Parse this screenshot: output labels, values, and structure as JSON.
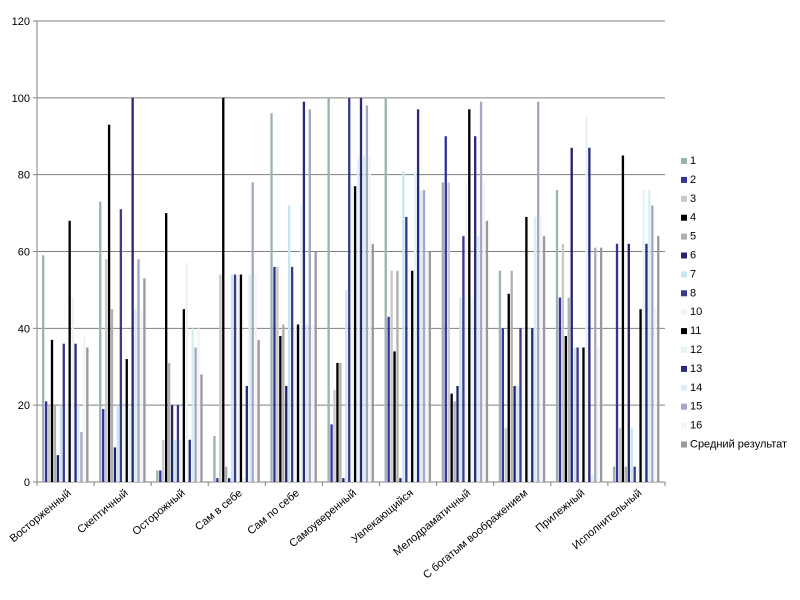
{
  "chart_data": {
    "type": "bar",
    "title": "",
    "xlabel": "",
    "ylabel": "",
    "ylim": [
      0,
      120
    ],
    "yticks": [
      0,
      20,
      40,
      60,
      80,
      100,
      120
    ],
    "grid": true,
    "legend_position": "right",
    "categories": [
      "Восторженный",
      "Скептичный",
      "Осторожный",
      "Сам в себе",
      "Сам по себе",
      "Самоуверенный",
      "Увлекающийся",
      "Мелодраматичный",
      "С богатым воображением",
      "Прилежный",
      "Исполнительный"
    ],
    "series": [
      {
        "name": "1",
        "color": "#9BB3B3",
        "values": [
          59,
          73,
          3,
          12,
          96,
          100,
          100,
          78,
          55,
          76,
          4
        ]
      },
      {
        "name": "2",
        "color": "#333399",
        "values": [
          21,
          19,
          3,
          1,
          56,
          15,
          43,
          90,
          40,
          48,
          62
        ]
      },
      {
        "name": "3",
        "color": "#C8C8C8",
        "values": [
          20,
          58,
          11,
          54,
          56,
          24,
          55,
          78,
          14,
          62,
          14
        ]
      },
      {
        "name": "4",
        "color": "#000000",
        "values": [
          37,
          93,
          70,
          100,
          38,
          31,
          34,
          23,
          49,
          38,
          85
        ]
      },
      {
        "name": "5",
        "color": "#B0B0B0",
        "values": [
          20,
          45,
          31,
          4,
          41,
          31,
          55,
          21,
          55,
          48,
          4
        ]
      },
      {
        "name": "6",
        "color": "#24246E",
        "values": [
          7,
          9,
          20,
          1,
          25,
          1,
          1,
          25,
          25,
          87,
          62
        ]
      },
      {
        "name": "7",
        "color": "#C8E6EE",
        "values": [
          20,
          20,
          11,
          54,
          72,
          50,
          81,
          48,
          25,
          35,
          14
        ]
      },
      {
        "name": "8",
        "color": "#3A3A8A",
        "values": [
          36,
          71,
          20,
          54,
          56,
          100,
          69,
          64,
          40,
          35,
          4
        ]
      },
      {
        "name": "10",
        "color": "#F4F4F4",
        "values": [
          21,
          20,
          11,
          54,
          41,
          77,
          55,
          78,
          40,
          35,
          4
        ]
      },
      {
        "name": "11",
        "color": "#000000",
        "values": [
          68,
          32,
          45,
          54,
          41,
          77,
          55,
          97,
          69,
          35,
          45
        ]
      },
      {
        "name": "12",
        "color": "#E6F4F8",
        "values": [
          48,
          20,
          57,
          1,
          72,
          85,
          81,
          48,
          40,
          95,
          76
        ]
      },
      {
        "name": "13",
        "color": "#2A2A7A",
        "values": [
          36,
          100,
          11,
          25,
          99,
          100,
          97,
          90,
          40,
          87,
          62
        ]
      },
      {
        "name": "14",
        "color": "#D8EEF2",
        "values": [
          20,
          45,
          40,
          54,
          41,
          85,
          76,
          64,
          69,
          2,
          76
        ]
      },
      {
        "name": "15",
        "color": "#A6A6C6",
        "values": [
          13,
          58,
          35,
          78,
          97,
          98,
          76,
          99,
          99,
          61,
          72
        ]
      },
      {
        "name": "16",
        "color": "#F4F4F4",
        "values": [
          38,
          45,
          40,
          54,
          41,
          85,
          60,
          78,
          69,
          35,
          45
        ]
      },
      {
        "name": "Средний результат",
        "color": "#9A9A9A",
        "values": [
          35,
          53,
          28,
          37,
          60,
          62,
          60,
          68,
          64,
          61,
          64
        ]
      }
    ]
  }
}
